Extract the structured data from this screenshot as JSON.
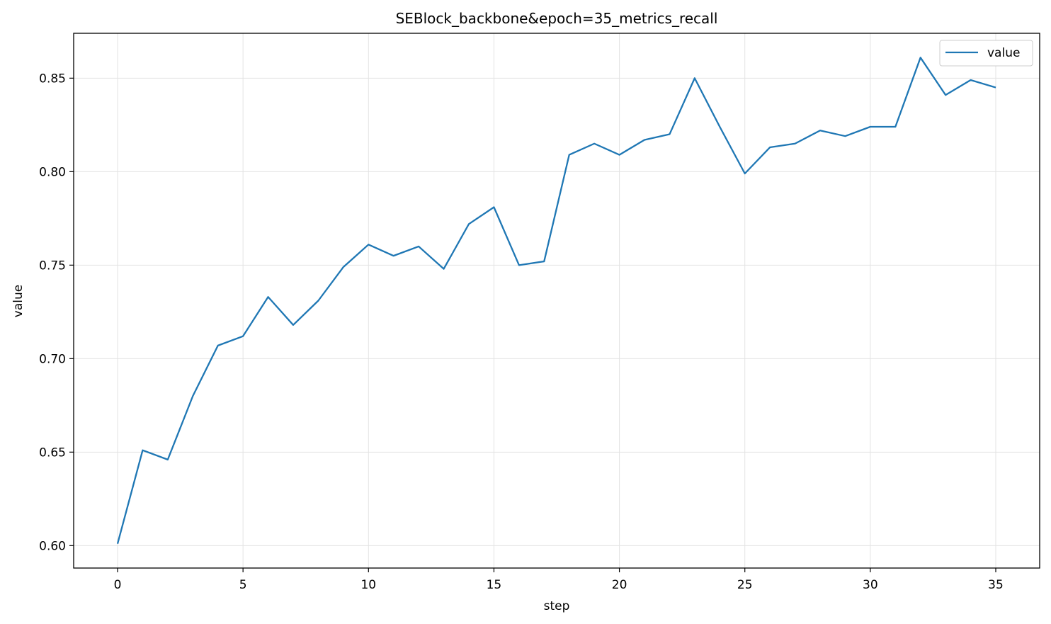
{
  "chart_data": {
    "type": "line",
    "title": "SEBlock_backbone&epoch=35_metrics_recall",
    "xlabel": "step",
    "ylabel": "value",
    "xlim": [
      -1.75,
      36.75
    ],
    "ylim": [
      0.588,
      0.874
    ],
    "xticks": [
      0,
      5,
      10,
      15,
      20,
      25,
      30,
      35
    ],
    "yticks": [
      0.6,
      0.65,
      0.7,
      0.75,
      0.8,
      0.85
    ],
    "ytick_labels": [
      "0.60",
      "0.65",
      "0.70",
      "0.75",
      "0.80",
      "0.85"
    ],
    "grid": true,
    "legend_position": "upper right",
    "series": [
      {
        "name": "value",
        "color": "#1f77b4",
        "x": [
          0,
          1,
          2,
          3,
          4,
          5,
          6,
          7,
          8,
          9,
          10,
          11,
          12,
          13,
          14,
          15,
          16,
          17,
          18,
          19,
          20,
          21,
          22,
          23,
          24,
          25,
          26,
          27,
          28,
          29,
          30,
          31,
          32,
          33,
          34,
          35
        ],
        "y": [
          0.601,
          0.651,
          0.646,
          0.68,
          0.707,
          0.712,
          0.733,
          0.718,
          0.731,
          0.749,
          0.761,
          0.755,
          0.76,
          0.748,
          0.772,
          0.781,
          0.75,
          0.752,
          0.809,
          0.815,
          0.809,
          0.817,
          0.82,
          0.85,
          0.824,
          0.799,
          0.813,
          0.815,
          0.822,
          0.819,
          0.824,
          0.824,
          0.861,
          0.841,
          0.849,
          0.845
        ]
      }
    ]
  }
}
